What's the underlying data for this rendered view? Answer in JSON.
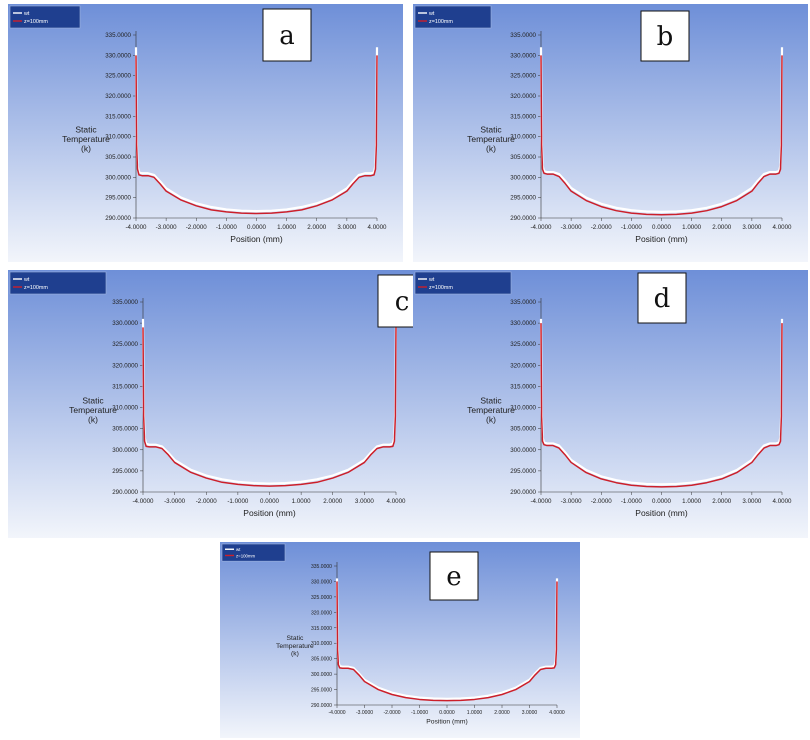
{
  "chart_data": [
    {
      "panel": "a",
      "type": "line",
      "title": "",
      "xlabel": "Position (mm)",
      "ylabel": "Static Temperature (k)",
      "xlim": [
        -4.0,
        4.0
      ],
      "ylim": [
        290.0,
        335.0
      ],
      "xticks": [
        "-4.0000",
        "-3.0000",
        "-2.0000",
        "-1.0000",
        "0.0000",
        "1.0000",
        "2.0000",
        "3.0000",
        "4.0000"
      ],
      "yticks": [
        "290.0000",
        "295.0000",
        "300.0000",
        "305.0000",
        "310.0000",
        "315.0000",
        "320.0000",
        "325.0000",
        "330.0000",
        "335.0000"
      ],
      "legend": {
        "position": "top-left",
        "entries": [
          "wt",
          "z=100mm"
        ]
      },
      "series": [
        {
          "name": "wt",
          "color": "#ffffff",
          "x": [
            -4.0,
            -3.98,
            -3.95,
            -3.9,
            -3.8,
            -3.6,
            -3.4,
            -3.2,
            -3.0,
            -2.5,
            -2.0,
            -1.5,
            -1.0,
            -0.5,
            0.0,
            0.5,
            1.0,
            1.5,
            2.0,
            2.5,
            3.0,
            3.2,
            3.4,
            3.6,
            3.8,
            3.9,
            3.95,
            3.98,
            4.0
          ],
          "y": [
            332,
            310,
            303,
            301.2,
            301.0,
            301.0,
            300.6,
            299.0,
            297.3,
            295.0,
            293.6,
            292.7,
            292.1,
            291.8,
            291.7,
            291.8,
            292.1,
            292.7,
            293.6,
            295.0,
            297.3,
            299.0,
            300.6,
            301.0,
            301.0,
            301.2,
            303,
            310,
            332
          ]
        },
        {
          "name": "z=100mm",
          "color": "#cc1f2a",
          "x": [
            -4.0,
            -3.98,
            -3.95,
            -3.9,
            -3.8,
            -3.6,
            -3.4,
            -3.2,
            -3.0,
            -2.5,
            -2.0,
            -1.5,
            -1.0,
            -0.5,
            0.0,
            0.5,
            1.0,
            1.5,
            2.0,
            2.5,
            3.0,
            3.2,
            3.4,
            3.6,
            3.8,
            3.9,
            3.95,
            3.98,
            4.0
          ],
          "y": [
            330,
            308,
            302,
            300.6,
            300.4,
            300.4,
            300.0,
            298.4,
            296.6,
            294.4,
            293.0,
            292.0,
            291.5,
            291.2,
            291.1,
            291.2,
            291.5,
            292.0,
            293.0,
            294.4,
            296.6,
            298.4,
            300.0,
            300.4,
            300.4,
            300.6,
            302,
            308,
            330
          ]
        }
      ]
    },
    {
      "panel": "b",
      "type": "line",
      "title": "",
      "xlabel": "Position (mm)",
      "ylabel": "Static Temperature (k)",
      "xlim": [
        -4.0,
        4.0
      ],
      "ylim": [
        290.0,
        335.0
      ],
      "xticks": [
        "-4.0000",
        "-3.0000",
        "-2.0000",
        "-1.0000",
        "0.0000",
        "1.0000",
        "2.0000",
        "3.0000",
        "4.0000"
      ],
      "yticks": [
        "290.0000",
        "295.0000",
        "300.0000",
        "305.0000",
        "310.0000",
        "315.0000",
        "320.0000",
        "325.0000",
        "330.0000",
        "335.0000"
      ],
      "legend": {
        "position": "top-left",
        "entries": [
          "wt",
          "z=100mm"
        ]
      },
      "series": [
        {
          "name": "wt",
          "color": "#ffffff",
          "x": [
            -4.0,
            -3.98,
            -3.95,
            -3.9,
            -3.8,
            -3.6,
            -3.4,
            -3.2,
            -3.0,
            -2.5,
            -2.0,
            -1.5,
            -1.0,
            -0.5,
            0.0,
            0.5,
            1.0,
            1.5,
            2.0,
            2.5,
            3.0,
            3.2,
            3.4,
            3.6,
            3.8,
            3.9,
            3.95,
            3.98,
            4.0
          ],
          "y": [
            332,
            310,
            303,
            301.5,
            301.3,
            301.3,
            300.8,
            299.2,
            297.4,
            295.0,
            293.5,
            292.5,
            291.9,
            291.6,
            291.5,
            291.6,
            291.9,
            292.5,
            293.5,
            295.0,
            297.4,
            299.2,
            300.8,
            301.3,
            301.3,
            301.5,
            303,
            310,
            332
          ]
        },
        {
          "name": "z=100mm",
          "color": "#cc1f2a",
          "x": [
            -4.0,
            -3.98,
            -3.95,
            -3.9,
            -3.8,
            -3.6,
            -3.4,
            -3.2,
            -3.0,
            -2.5,
            -2.0,
            -1.5,
            -1.0,
            -0.5,
            0.0,
            0.5,
            1.0,
            1.5,
            2.0,
            2.5,
            3.0,
            3.2,
            3.4,
            3.6,
            3.8,
            3.9,
            3.95,
            3.98,
            4.0
          ],
          "y": [
            330,
            308,
            302,
            301.0,
            300.8,
            300.8,
            300.2,
            298.5,
            296.6,
            294.3,
            292.8,
            291.8,
            291.2,
            290.9,
            290.8,
            290.9,
            291.2,
            291.8,
            292.8,
            294.3,
            296.6,
            298.5,
            300.2,
            300.8,
            300.8,
            301.0,
            302,
            308,
            330
          ]
        }
      ]
    },
    {
      "panel": "c",
      "type": "line",
      "title": "",
      "xlabel": "Position (mm)",
      "ylabel": "Static Temperature (k)",
      "xlim": [
        -4.0,
        4.0
      ],
      "ylim": [
        290.0,
        335.0
      ],
      "xticks": [
        "-4.0000",
        "-3.0000",
        "-2.0000",
        "-1.0000",
        "0.0000",
        "1.0000",
        "2.0000",
        "3.0000",
        "4.0000"
      ],
      "yticks": [
        "290.0000",
        "295.0000",
        "300.0000",
        "305.0000",
        "310.0000",
        "315.0000",
        "320.0000",
        "325.0000",
        "330.0000",
        "335.0000"
      ],
      "legend": {
        "position": "top-left",
        "entries": [
          "wt",
          "z=100mm"
        ]
      },
      "series": [
        {
          "name": "wt",
          "color": "#ffffff",
          "x": [
            -4.0,
            -3.98,
            -3.95,
            -3.9,
            -3.8,
            -3.6,
            -3.4,
            -3.2,
            -3.0,
            -2.5,
            -2.0,
            -1.5,
            -1.0,
            -0.5,
            0.0,
            0.5,
            1.0,
            1.5,
            2.0,
            2.5,
            3.0,
            3.2,
            3.4,
            3.6,
            3.8,
            3.9,
            3.95,
            3.98,
            4.0
          ],
          "y": [
            331,
            310,
            303,
            301.4,
            301.2,
            301.2,
            300.8,
            299.3,
            297.6,
            295.3,
            293.9,
            293.0,
            292.4,
            292.1,
            292.0,
            292.1,
            292.4,
            293.0,
            293.9,
            295.3,
            297.6,
            299.3,
            300.8,
            301.2,
            301.2,
            301.4,
            303,
            310,
            331
          ]
        },
        {
          "name": "z=100mm",
          "color": "#cc1f2a",
          "x": [
            -4.0,
            -3.98,
            -3.95,
            -3.9,
            -3.8,
            -3.6,
            -3.4,
            -3.2,
            -3.0,
            -2.5,
            -2.0,
            -1.5,
            -1.0,
            -0.5,
            0.0,
            0.5,
            1.0,
            1.5,
            2.0,
            2.5,
            3.0,
            3.2,
            3.4,
            3.6,
            3.8,
            3.9,
            3.95,
            3.98,
            4.0
          ],
          "y": [
            329,
            308,
            302,
            300.8,
            300.7,
            300.7,
            300.3,
            298.8,
            297.0,
            294.7,
            293.3,
            292.3,
            291.8,
            291.5,
            291.4,
            291.5,
            291.8,
            292.3,
            293.3,
            294.7,
            297.0,
            298.8,
            300.3,
            300.7,
            300.7,
            300.8,
            302,
            308,
            329
          ]
        }
      ]
    },
    {
      "panel": "d",
      "type": "line",
      "title": "",
      "xlabel": "Position (mm)",
      "ylabel": "Static Temperature (k)",
      "xlim": [
        -4.0,
        4.0
      ],
      "ylim": [
        290.0,
        335.0
      ],
      "xticks": [
        "-4.0000",
        "-3.0000",
        "-2.0000",
        "-1.0000",
        "0.0000",
        "1.0000",
        "2.0000",
        "3.0000",
        "4.0000"
      ],
      "yticks": [
        "290.0000",
        "295.0000",
        "300.0000",
        "305.0000",
        "310.0000",
        "315.0000",
        "320.0000",
        "325.0000",
        "330.0000",
        "335.0000"
      ],
      "legend": {
        "position": "top-left",
        "entries": [
          "wt",
          "z=100mm"
        ]
      },
      "series": [
        {
          "name": "wt",
          "color": "#ffffff",
          "x": [
            -4.0,
            -3.98,
            -3.95,
            -3.9,
            -3.8,
            -3.6,
            -3.4,
            -3.2,
            -3.0,
            -2.5,
            -2.0,
            -1.5,
            -1.0,
            -0.5,
            0.0,
            0.5,
            1.0,
            1.5,
            2.0,
            2.5,
            3.0,
            3.2,
            3.4,
            3.6,
            3.8,
            3.9,
            3.95,
            3.98,
            4.0
          ],
          "y": [
            331,
            310,
            303,
            301.7,
            301.5,
            301.5,
            301.0,
            299.4,
            297.6,
            295.2,
            293.7,
            292.8,
            292.2,
            291.9,
            291.8,
            291.9,
            292.2,
            292.8,
            293.7,
            295.2,
            297.6,
            299.4,
            301.0,
            301.5,
            301.5,
            301.7,
            303,
            310,
            331
          ]
        },
        {
          "name": "z=100mm",
          "color": "#cc1f2a",
          "x": [
            -4.0,
            -3.98,
            -3.95,
            -3.9,
            -3.8,
            -3.6,
            -3.4,
            -3.2,
            -3.0,
            -2.5,
            -2.0,
            -1.5,
            -1.0,
            -0.5,
            0.0,
            0.5,
            1.0,
            1.5,
            2.0,
            2.5,
            3.0,
            3.2,
            3.4,
            3.6,
            3.8,
            3.9,
            3.95,
            3.98,
            4.0
          ],
          "y": [
            330,
            308,
            302,
            301.2,
            301.0,
            301.0,
            300.4,
            298.8,
            297.0,
            294.6,
            293.1,
            292.2,
            291.6,
            291.3,
            291.2,
            291.3,
            291.6,
            292.2,
            293.1,
            294.6,
            297.0,
            298.8,
            300.4,
            301.0,
            301.0,
            301.2,
            302,
            308,
            330
          ]
        }
      ]
    },
    {
      "panel": "e",
      "type": "line",
      "title": "",
      "xlabel": "Position (mm)",
      "ylabel": "Static Temperature (k)",
      "xlim": [
        -4.0,
        4.0
      ],
      "ylim": [
        290.0,
        335.0
      ],
      "xticks": [
        "-4.0000",
        "-3.0000",
        "-2.0000",
        "-1.0000",
        "0.0000",
        "1.0000",
        "2.0000",
        "3.0000",
        "4.0000"
      ],
      "yticks": [
        "290.0000",
        "295.0000",
        "300.0000",
        "305.0000",
        "310.0000",
        "315.0000",
        "320.0000",
        "325.0000",
        "330.0000",
        "335.0000"
      ],
      "legend": {
        "position": "top-left",
        "entries": [
          "wt",
          "z=100mm"
        ]
      },
      "series": [
        {
          "name": "wt",
          "color": "#ffffff",
          "x": [
            -4.0,
            -3.98,
            -3.95,
            -3.9,
            -3.8,
            -3.6,
            -3.4,
            -3.2,
            -3.0,
            -2.5,
            -2.0,
            -1.5,
            -1.0,
            -0.5,
            0.0,
            0.5,
            1.0,
            1.5,
            2.0,
            2.5,
            3.0,
            3.2,
            3.4,
            3.6,
            3.8,
            3.9,
            3.95,
            3.98,
            4.0
          ],
          "y": [
            331,
            310,
            304,
            302.6,
            302.4,
            302.4,
            302.0,
            300.2,
            298.2,
            295.6,
            294.0,
            293.0,
            292.4,
            292.1,
            292.0,
            292.1,
            292.4,
            293.0,
            294.0,
            295.6,
            298.2,
            300.2,
            302.0,
            302.4,
            302.4,
            302.6,
            304,
            310,
            331
          ]
        },
        {
          "name": "z=100mm",
          "color": "#cc1f2a",
          "x": [
            -4.0,
            -3.98,
            -3.95,
            -3.9,
            -3.8,
            -3.6,
            -3.4,
            -3.2,
            -3.0,
            -2.5,
            -2.0,
            -1.5,
            -1.0,
            -0.5,
            0.0,
            0.5,
            1.0,
            1.5,
            2.0,
            2.5,
            3.0,
            3.2,
            3.4,
            3.6,
            3.8,
            3.9,
            3.95,
            3.98,
            4.0
          ],
          "y": [
            330,
            308,
            303,
            302.0,
            301.9,
            301.9,
            301.5,
            299.7,
            297.6,
            295.0,
            293.4,
            292.4,
            291.8,
            291.5,
            291.4,
            291.5,
            291.8,
            292.4,
            293.4,
            295.0,
            297.6,
            299.7,
            301.5,
            301.9,
            301.9,
            302.0,
            303,
            308,
            330
          ]
        }
      ]
    }
  ],
  "panel_labels": [
    "a",
    "b",
    "c",
    "d",
    "e"
  ],
  "colors": {
    "background_top": "#6e8fd8",
    "background_bottom": "#f2f5fb",
    "legend_background": "#1f3f8f",
    "curve_red": "#cc1f2a",
    "curve_white": "#ffffff"
  }
}
